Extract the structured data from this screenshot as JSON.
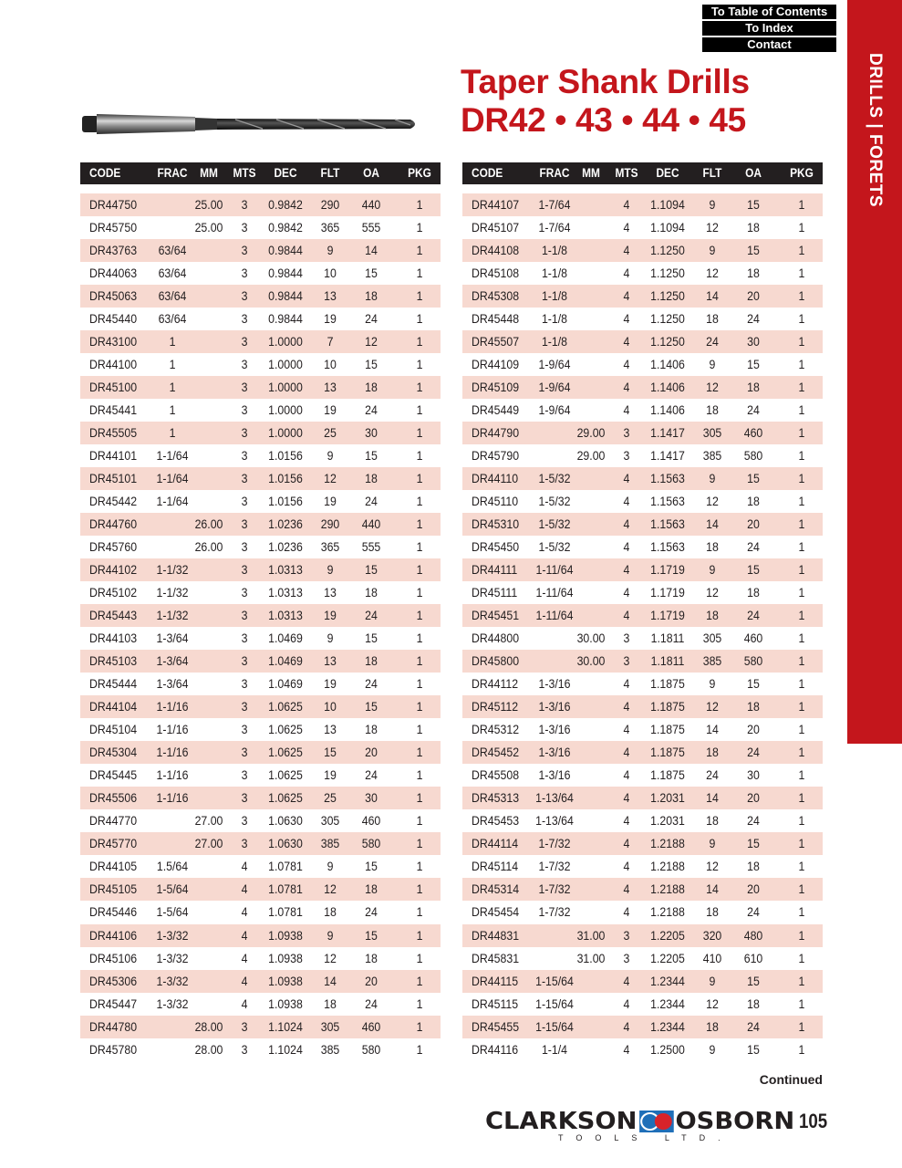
{
  "nav": {
    "toc": "To Table of Contents",
    "index": "To Index",
    "contact": "Contact"
  },
  "sidebar": {
    "label": "DRILLS  |  FORETS"
  },
  "colors": {
    "accent": "#c4161c",
    "row_shade": "#f7d9d0",
    "header_bg": "#231f20"
  },
  "title": {
    "line1": "Taper Shank Drills",
    "line2": "DR42 • 43 • 44 • 45"
  },
  "columns": [
    "CODE",
    "FRAC",
    "MM",
    "MTS",
    "DEC",
    "FLT",
    "OA",
    "PKG"
  ],
  "left_table": [
    [
      "DR44750",
      "",
      "25.00",
      "3",
      "0.9842",
      "290",
      "440",
      "1"
    ],
    [
      "DR45750",
      "",
      "25.00",
      "3",
      "0.9842",
      "365",
      "555",
      "1"
    ],
    [
      "DR43763",
      "63/64",
      "",
      "3",
      "0.9844",
      "9",
      "14",
      "1"
    ],
    [
      "DR44063",
      "63/64",
      "",
      "3",
      "0.9844",
      "10",
      "15",
      "1"
    ],
    [
      "DR45063",
      "63/64",
      "",
      "3",
      "0.9844",
      "13",
      "18",
      "1"
    ],
    [
      "DR45440",
      "63/64",
      "",
      "3",
      "0.9844",
      "19",
      "24",
      "1"
    ],
    [
      "DR43100",
      "1",
      "",
      "3",
      "1.0000",
      "7",
      "12",
      "1"
    ],
    [
      "DR44100",
      "1",
      "",
      "3",
      "1.0000",
      "10",
      "15",
      "1"
    ],
    [
      "DR45100",
      "1",
      "",
      "3",
      "1.0000",
      "13",
      "18",
      "1"
    ],
    [
      "DR45441",
      "1",
      "",
      "3",
      "1.0000",
      "19",
      "24",
      "1"
    ],
    [
      "DR45505",
      "1",
      "",
      "3",
      "1.0000",
      "25",
      "30",
      "1"
    ],
    [
      "DR44101",
      "1-1/64",
      "",
      "3",
      "1.0156",
      "9",
      "15",
      "1"
    ],
    [
      "DR45101",
      "1-1/64",
      "",
      "3",
      "1.0156",
      "12",
      "18",
      "1"
    ],
    [
      "DR45442",
      "1-1/64",
      "",
      "3",
      "1.0156",
      "19",
      "24",
      "1"
    ],
    [
      "DR44760",
      "",
      "26.00",
      "3",
      "1.0236",
      "290",
      "440",
      "1"
    ],
    [
      "DR45760",
      "",
      "26.00",
      "3",
      "1.0236",
      "365",
      "555",
      "1"
    ],
    [
      "DR44102",
      "1-1/32",
      "",
      "3",
      "1.0313",
      "9",
      "15",
      "1"
    ],
    [
      "DR45102",
      "1-1/32",
      "",
      "3",
      "1.0313",
      "13",
      "18",
      "1"
    ],
    [
      "DR45443",
      "1-1/32",
      "",
      "3",
      "1.0313",
      "19",
      "24",
      "1"
    ],
    [
      "DR44103",
      "1-3/64",
      "",
      "3",
      "1.0469",
      "9",
      "15",
      "1"
    ],
    [
      "DR45103",
      "1-3/64",
      "",
      "3",
      "1.0469",
      "13",
      "18",
      "1"
    ],
    [
      "DR45444",
      "1-3/64",
      "",
      "3",
      "1.0469",
      "19",
      "24",
      "1"
    ],
    [
      "DR44104",
      "1-1/16",
      "",
      "3",
      "1.0625",
      "10",
      "15",
      "1"
    ],
    [
      "DR45104",
      "1-1/16",
      "",
      "3",
      "1.0625",
      "13",
      "18",
      "1"
    ],
    [
      "DR45304",
      "1-1/16",
      "",
      "3",
      "1.0625",
      "15",
      "20",
      "1"
    ],
    [
      "DR45445",
      "1-1/16",
      "",
      "3",
      "1.0625",
      "19",
      "24",
      "1"
    ],
    [
      "DR45506",
      "1-1/16",
      "",
      "3",
      "1.0625",
      "25",
      "30",
      "1"
    ],
    [
      "DR44770",
      "",
      "27.00",
      "3",
      "1.0630",
      "305",
      "460",
      "1"
    ],
    [
      "DR45770",
      "",
      "27.00",
      "3",
      "1.0630",
      "385",
      "580",
      "1"
    ],
    [
      "DR44105",
      "1.5/64",
      "",
      "4",
      "1.0781",
      "9",
      "15",
      "1"
    ],
    [
      "DR45105",
      "1-5/64",
      "",
      "4",
      "1.0781",
      "12",
      "18",
      "1"
    ],
    [
      "DR45446",
      "1-5/64",
      "",
      "4",
      "1.0781",
      "18",
      "24",
      "1"
    ],
    [
      "DR44106",
      "1-3/32",
      "",
      "4",
      "1.0938",
      "9",
      "15",
      "1"
    ],
    [
      "DR45106",
      "1-3/32",
      "",
      "4",
      "1.0938",
      "12",
      "18",
      "1"
    ],
    [
      "DR45306",
      "1-3/32",
      "",
      "4",
      "1.0938",
      "14",
      "20",
      "1"
    ],
    [
      "DR45447",
      "1-3/32",
      "",
      "4",
      "1.0938",
      "18",
      "24",
      "1"
    ],
    [
      "DR44780",
      "",
      "28.00",
      "3",
      "1.1024",
      "305",
      "460",
      "1"
    ],
    [
      "DR45780",
      "",
      "28.00",
      "3",
      "1.1024",
      "385",
      "580",
      "1"
    ]
  ],
  "right_table": [
    [
      "DR44107",
      "1-7/64",
      "",
      "4",
      "1.1094",
      "9",
      "15",
      "1"
    ],
    [
      "DR45107",
      "1-7/64",
      "",
      "4",
      "1.1094",
      "12",
      "18",
      "1"
    ],
    [
      "DR44108",
      "1-1/8",
      "",
      "4",
      "1.1250",
      "9",
      "15",
      "1"
    ],
    [
      "DR45108",
      "1-1/8",
      "",
      "4",
      "1.1250",
      "12",
      "18",
      "1"
    ],
    [
      "DR45308",
      "1-1/8",
      "",
      "4",
      "1.1250",
      "14",
      "20",
      "1"
    ],
    [
      "DR45448",
      "1-1/8",
      "",
      "4",
      "1.1250",
      "18",
      "24",
      "1"
    ],
    [
      "DR45507",
      "1-1/8",
      "",
      "4",
      "1.1250",
      "24",
      "30",
      "1"
    ],
    [
      "DR44109",
      "1-9/64",
      "",
      "4",
      "1.1406",
      "9",
      "15",
      "1"
    ],
    [
      "DR45109",
      "1-9/64",
      "",
      "4",
      "1.1406",
      "12",
      "18",
      "1"
    ],
    [
      "DR45449",
      "1-9/64",
      "",
      "4",
      "1.1406",
      "18",
      "24",
      "1"
    ],
    [
      "DR44790",
      "",
      "29.00",
      "3",
      "1.1417",
      "305",
      "460",
      "1"
    ],
    [
      "DR45790",
      "",
      "29.00",
      "3",
      "1.1417",
      "385",
      "580",
      "1"
    ],
    [
      "DR44110",
      "1-5/32",
      "",
      "4",
      "1.1563",
      "9",
      "15",
      "1"
    ],
    [
      "DR45110",
      "1-5/32",
      "",
      "4",
      "1.1563",
      "12",
      "18",
      "1"
    ],
    [
      "DR45310",
      "1-5/32",
      "",
      "4",
      "1.1563",
      "14",
      "20",
      "1"
    ],
    [
      "DR45450",
      "1-5/32",
      "",
      "4",
      "1.1563",
      "18",
      "24",
      "1"
    ],
    [
      "DR44111",
      "1-11/64",
      "",
      "4",
      "1.1719",
      "9",
      "15",
      "1"
    ],
    [
      "DR45111",
      "1-11/64",
      "",
      "4",
      "1.1719",
      "12",
      "18",
      "1"
    ],
    [
      "DR45451",
      "1-11/64",
      "",
      "4",
      "1.1719",
      "18",
      "24",
      "1"
    ],
    [
      "DR44800",
      "",
      "30.00",
      "3",
      "1.1811",
      "305",
      "460",
      "1"
    ],
    [
      "DR45800",
      "",
      "30.00",
      "3",
      "1.1811",
      "385",
      "580",
      "1"
    ],
    [
      "DR44112",
      "1-3/16",
      "",
      "4",
      "1.1875",
      "9",
      "15",
      "1"
    ],
    [
      "DR45112",
      "1-3/16",
      "",
      "4",
      "1.1875",
      "12",
      "18",
      "1"
    ],
    [
      "DR45312",
      "1-3/16",
      "",
      "4",
      "1.1875",
      "14",
      "20",
      "1"
    ],
    [
      "DR45452",
      "1-3/16",
      "",
      "4",
      "1.1875",
      "18",
      "24",
      "1"
    ],
    [
      "DR45508",
      "1-3/16",
      "",
      "4",
      "1.1875",
      "24",
      "30",
      "1"
    ],
    [
      "DR45313",
      "1-13/64",
      "",
      "4",
      "1.2031",
      "14",
      "20",
      "1"
    ],
    [
      "DR45453",
      "1-13/64",
      "",
      "4",
      "1.2031",
      "18",
      "24",
      "1"
    ],
    [
      "DR44114",
      "1-7/32",
      "",
      "4",
      "1.2188",
      "9",
      "15",
      "1"
    ],
    [
      "DR45114",
      "1-7/32",
      "",
      "4",
      "1.2188",
      "12",
      "18",
      "1"
    ],
    [
      "DR45314",
      "1-7/32",
      "",
      "4",
      "1.2188",
      "14",
      "20",
      "1"
    ],
    [
      "DR45454",
      "1-7/32",
      "",
      "4",
      "1.2188",
      "18",
      "24",
      "1"
    ],
    [
      "DR44831",
      "",
      "31.00",
      "3",
      "1.2205",
      "320",
      "480",
      "1"
    ],
    [
      "DR45831",
      "",
      "31.00",
      "3",
      "1.2205",
      "410",
      "610",
      "1"
    ],
    [
      "DR44115",
      "1-15/64",
      "",
      "4",
      "1.2344",
      "9",
      "15",
      "1"
    ],
    [
      "DR45115",
      "1-15/64",
      "",
      "4",
      "1.2344",
      "12",
      "18",
      "1"
    ],
    [
      "DR45455",
      "1-15/64",
      "",
      "4",
      "1.2344",
      "18",
      "24",
      "1"
    ],
    [
      "DR44116",
      "1-1/4",
      "",
      "4",
      "1.2500",
      "9",
      "15",
      "1"
    ]
  ],
  "footer": {
    "continued": "Continued",
    "logo_left": "CLARKSON",
    "logo_right": "OSBORN",
    "logo_sub": "TOOLS LTD.",
    "page_number": "105"
  }
}
